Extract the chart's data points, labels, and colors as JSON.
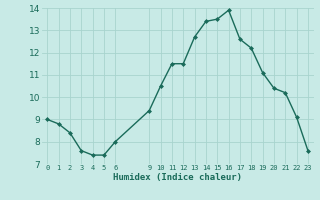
{
  "x": [
    0,
    1,
    2,
    3,
    4,
    5,
    6,
    9,
    10,
    11,
    12,
    13,
    14,
    15,
    16,
    17,
    18,
    19,
    20,
    21,
    22,
    23
  ],
  "y": [
    9.0,
    8.8,
    8.4,
    7.6,
    7.4,
    7.4,
    8.0,
    9.4,
    10.5,
    11.5,
    11.5,
    12.7,
    13.4,
    13.5,
    13.9,
    12.6,
    12.2,
    11.1,
    10.4,
    10.2,
    9.1,
    7.6
  ],
  "xticks": [
    0,
    1,
    2,
    3,
    4,
    5,
    6,
    9,
    10,
    11,
    12,
    13,
    14,
    15,
    16,
    17,
    18,
    19,
    20,
    21,
    22,
    23
  ],
  "xlim": [
    -0.5,
    23.5
  ],
  "ylim": [
    7,
    14
  ],
  "yticks": [
    7,
    8,
    9,
    10,
    11,
    12,
    13,
    14
  ],
  "xlabel": "Humidex (Indice chaleur)",
  "line_color": "#1a6b5a",
  "marker": "D",
  "bg_color": "#c8eae6",
  "grid_color": "#a8d4ce",
  "label_color": "#1a6b5a"
}
